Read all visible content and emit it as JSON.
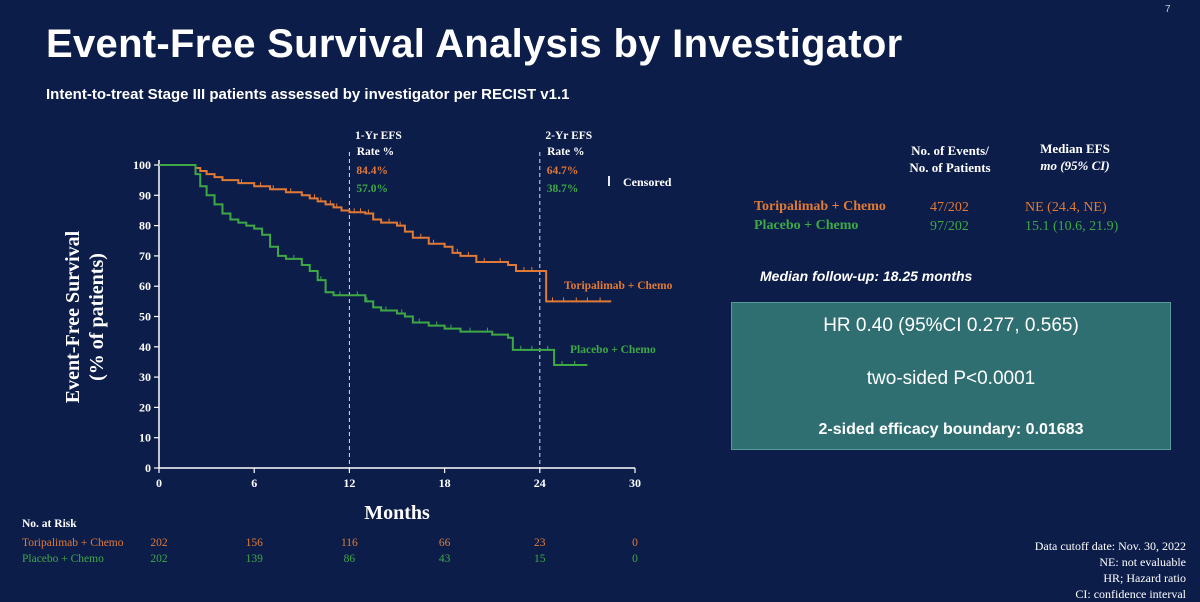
{
  "slide": {
    "page_number": "7",
    "title": "Event-Free Survival Analysis by Investigator",
    "subtitle": "Intent-to-treat Stage III patients assessed by investigator per RECIST v1.1"
  },
  "stats": {
    "col_events_line1": "No. of Events/",
    "col_events_line2": "No. of Patients",
    "col_median_line1": "Median EFS",
    "col_median_line2": "mo (95% CI)",
    "rows": [
      {
        "arm": "Toripalimab + Chemo",
        "events": "47/202",
        "median": "NE (24.4, NE)"
      },
      {
        "arm": "Placebo + Chemo",
        "events": "97/202",
        "median": "15.1 (10.6, 21.9)"
      }
    ],
    "followup": "Median follow-up: 18.25 months"
  },
  "hr_box": {
    "hr": "HR 0.40 (95%CI 0.277, 0.565)",
    "p": "two-sided P<0.0001",
    "boundary": "2-sided efficacy boundary:  0.01683"
  },
  "risk_table": {
    "header": "No. at Risk",
    "rows": [
      {
        "arm": "Toripalimab + Chemo",
        "values": [
          "202",
          "156",
          "116",
          "66",
          "23",
          "0"
        ]
      },
      {
        "arm": "Placebo + Chemo",
        "values": [
          "202",
          "139",
          "86",
          "43",
          "15",
          "0"
        ]
      }
    ]
  },
  "footnotes": [
    "Data cutoff date: Nov. 30, 2022",
    "NE: not evaluable",
    "HR; Hazard ratio",
    "CI: confidence interval"
  ],
  "colors": {
    "background": "#0d1d4a",
    "toripalimab": "#e07a35",
    "placebo": "#3ea845",
    "hr_box": "#2f6f72"
  },
  "chart_data": {
    "type": "line",
    "xlabel": "Months",
    "ylabel": "Event-Free Survival (% of patients)",
    "ylabel_line1": "Event-Free Survival",
    "ylabel_line2": "(% of patients)",
    "xlim": [
      0,
      30
    ],
    "ylim": [
      0,
      100
    ],
    "xticks": [
      0,
      6,
      12,
      18,
      24,
      30
    ],
    "yticks": [
      0,
      10,
      20,
      30,
      40,
      50,
      60,
      70,
      80,
      90,
      100
    ],
    "censored_legend": "Censored",
    "landmarks": [
      {
        "x": 12,
        "label_line1": "1-Yr EFS",
        "label_line2": "Rate %",
        "toripalimab": "84.4%",
        "placebo": "57.0%"
      },
      {
        "x": 24,
        "label_line1": "2-Yr EFS",
        "label_line2": "Rate %",
        "toripalimab": "64.7%",
        "placebo": "38.7%"
      }
    ],
    "series": [
      {
        "name": "Toripalimab + Chemo",
        "label": "Toripalimab  + Chemo",
        "color": "#e07a35",
        "points": [
          [
            0,
            100
          ],
          [
            2,
            100
          ],
          [
            2.3,
            99
          ],
          [
            2.6,
            98
          ],
          [
            3,
            97
          ],
          [
            3.5,
            96
          ],
          [
            4,
            95
          ],
          [
            5,
            94
          ],
          [
            6,
            93
          ],
          [
            7,
            92
          ],
          [
            8,
            91
          ],
          [
            9,
            90
          ],
          [
            9.5,
            89
          ],
          [
            10,
            88
          ],
          [
            10.5,
            87
          ],
          [
            11,
            86
          ],
          [
            11.5,
            85
          ],
          [
            12,
            84.4
          ],
          [
            13,
            84
          ],
          [
            13.5,
            82
          ],
          [
            14,
            81
          ],
          [
            15,
            80
          ],
          [
            15.5,
            78
          ],
          [
            16,
            76
          ],
          [
            17,
            74
          ],
          [
            18,
            73
          ],
          [
            18.5,
            71
          ],
          [
            19,
            70
          ],
          [
            20,
            68
          ],
          [
            21,
            68
          ],
          [
            22,
            67
          ],
          [
            22.5,
            65
          ],
          [
            24,
            65
          ],
          [
            24.3,
            65
          ],
          [
            24.4,
            55
          ],
          [
            25,
            55
          ],
          [
            28.5,
            55
          ]
        ],
        "censor_x": [
          5.2,
          6.4,
          7.2,
          8.3,
          9.8,
          10.2,
          10.8,
          11.2,
          12.3,
          12.7,
          13.2,
          14.5,
          15.2,
          16.5,
          17.3,
          18.8,
          19.5,
          20.5,
          21.5,
          23,
          23.5,
          24.8,
          25.5,
          26.3,
          27,
          27.8
        ]
      },
      {
        "name": "Placebo + Chemo",
        "label": "Placebo + Chemo",
        "color": "#3ea845",
        "points": [
          [
            0,
            100
          ],
          [
            2,
            100
          ],
          [
            2.3,
            97
          ],
          [
            2.6,
            93
          ],
          [
            3,
            90
          ],
          [
            3.5,
            87
          ],
          [
            4,
            84
          ],
          [
            4.5,
            82
          ],
          [
            5,
            81
          ],
          [
            5.5,
            80
          ],
          [
            6,
            79
          ],
          [
            6.5,
            77
          ],
          [
            7,
            73
          ],
          [
            7.5,
            70
          ],
          [
            8,
            69
          ],
          [
            9,
            67
          ],
          [
            9.5,
            65
          ],
          [
            10,
            62
          ],
          [
            10.5,
            58
          ],
          [
            11,
            57
          ],
          [
            12,
            57
          ],
          [
            13,
            55
          ],
          [
            13.5,
            53
          ],
          [
            14,
            52
          ],
          [
            15,
            51
          ],
          [
            15.5,
            50
          ],
          [
            16,
            48
          ],
          [
            17,
            47
          ],
          [
            18,
            46
          ],
          [
            19,
            45
          ],
          [
            20,
            45
          ],
          [
            21,
            44
          ],
          [
            22,
            43
          ],
          [
            22.3,
            39
          ],
          [
            24,
            39
          ],
          [
            24.8,
            39
          ],
          [
            24.9,
            34
          ],
          [
            27,
            34
          ]
        ],
        "censor_x": [
          8.5,
          10.2,
          11.4,
          12.5,
          13.1,
          14.3,
          15.3,
          16.4,
          17.5,
          18.4,
          19.6,
          20.7,
          22.8,
          23.5,
          24.5,
          25.4,
          26.2
        ]
      }
    ]
  }
}
